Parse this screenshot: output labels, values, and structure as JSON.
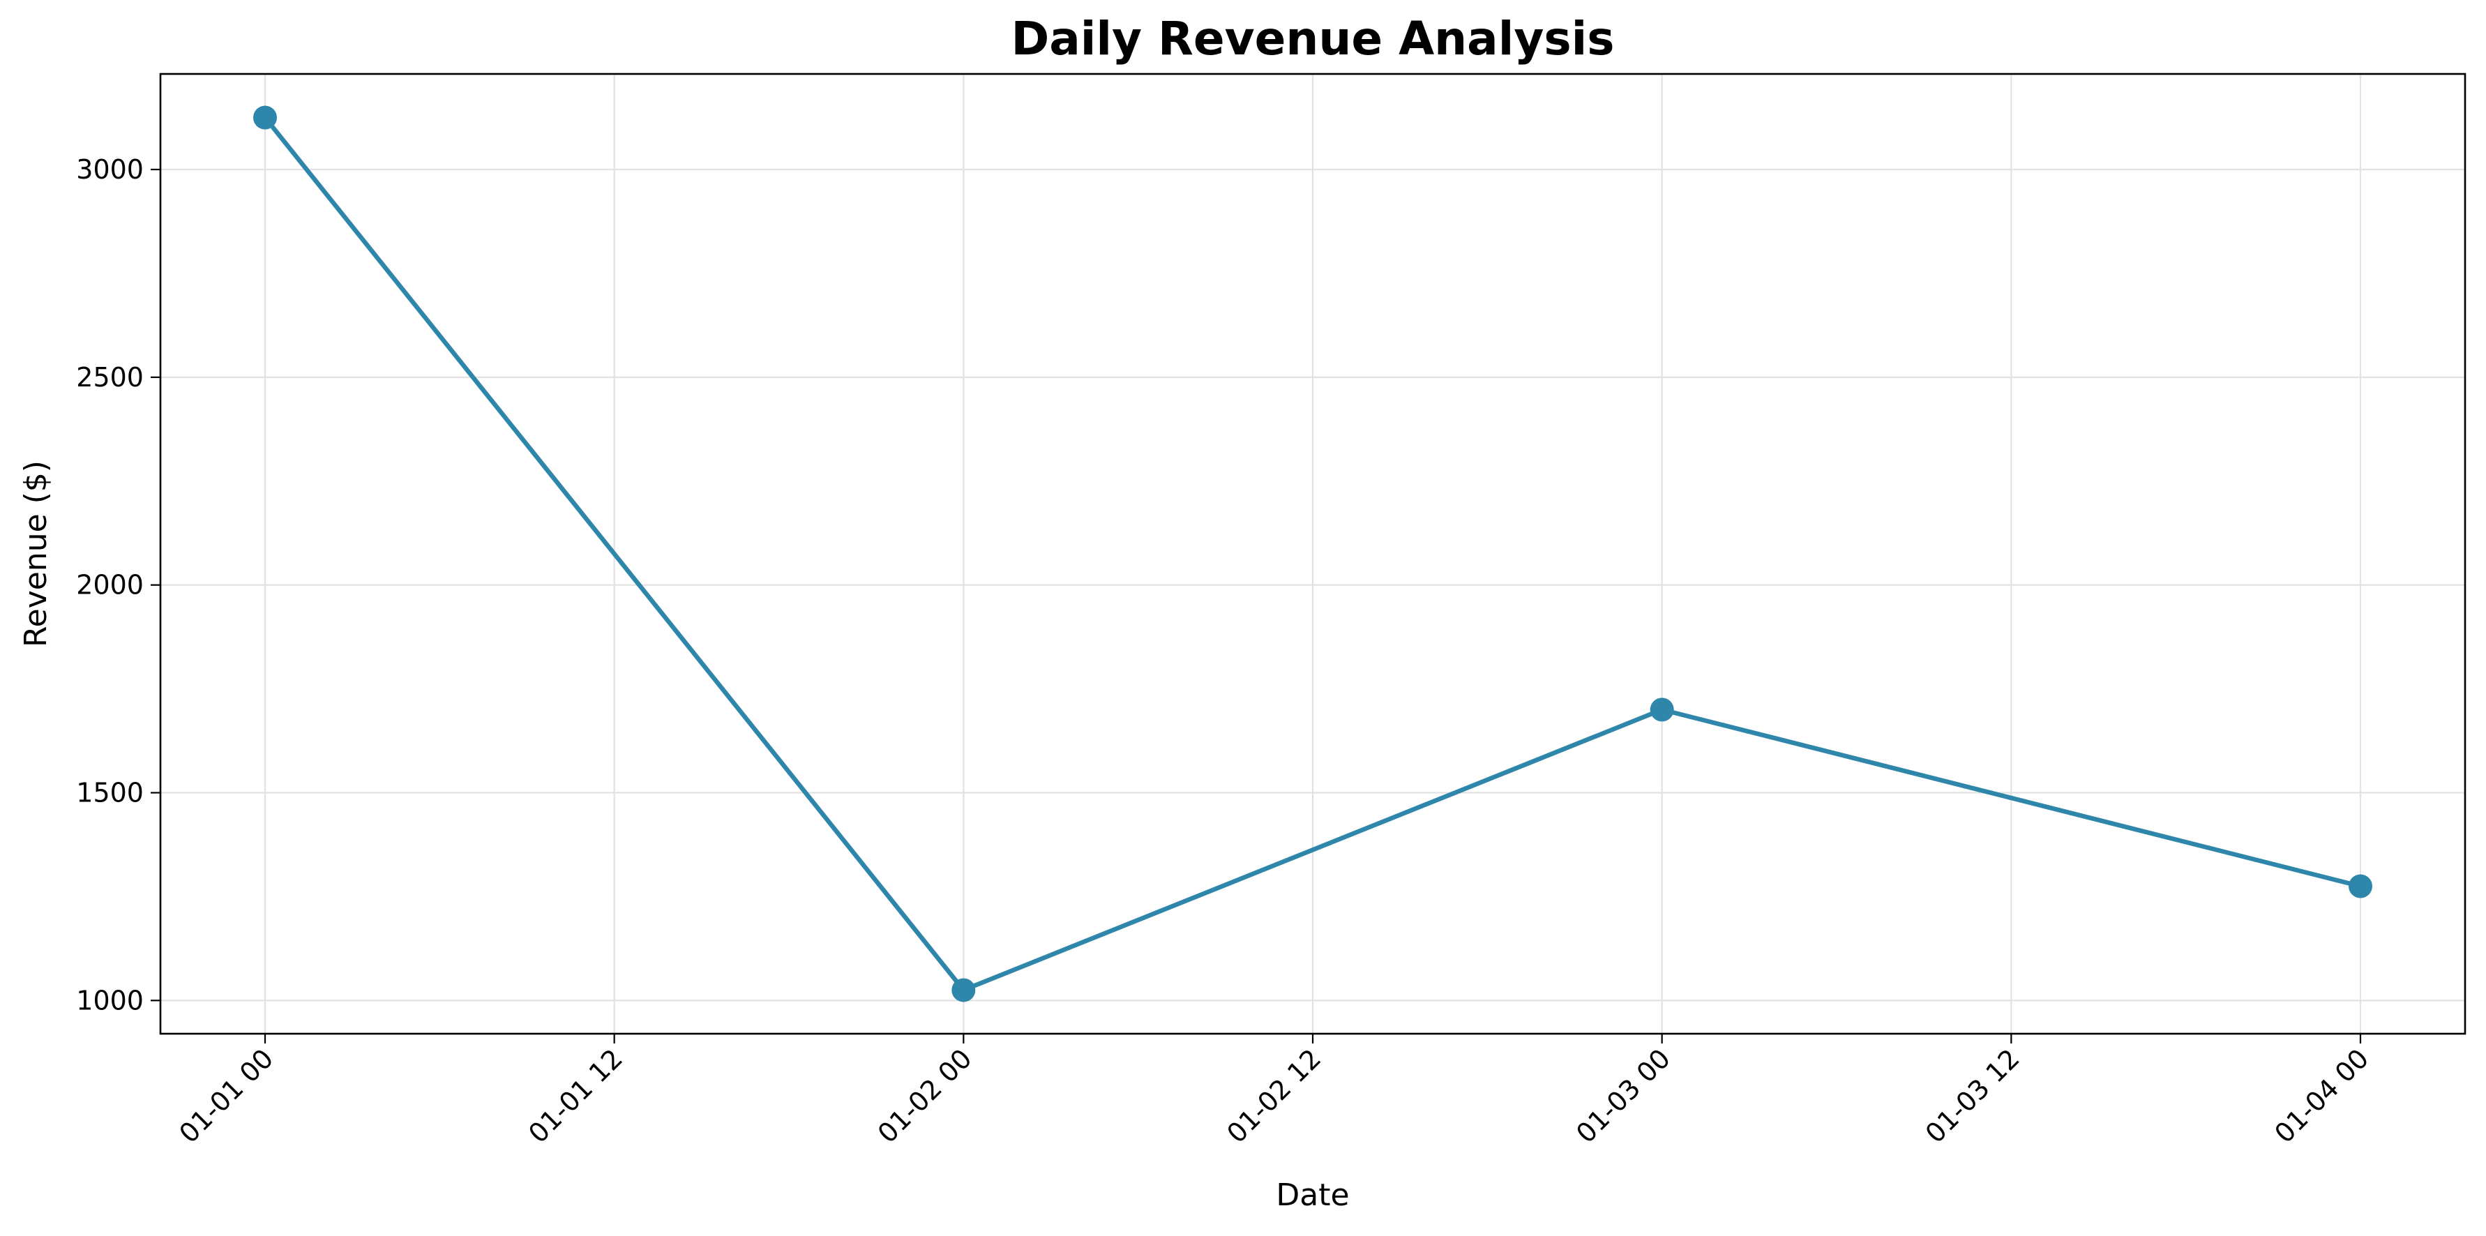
{
  "chart_data": {
    "type": "line",
    "title": "Daily Revenue Analysis",
    "xlabel": "Date",
    "ylabel": "Revenue ($)",
    "x": [
      "01-01 00",
      "01-02 00",
      "01-03 00",
      "01-04 00"
    ],
    "x_ticks": [
      "01-01 00",
      "01-01 12",
      "01-02 00",
      "01-02 12",
      "01-03 00",
      "01-03 12",
      "01-04 00"
    ],
    "y_ticks": [
      1000,
      1500,
      2000,
      2500,
      3000
    ],
    "ylim": [
      920,
      3230
    ],
    "grid": true,
    "series": [
      {
        "values": [
          3125,
          1025,
          1700,
          1275
        ],
        "color": "#2e86ab"
      }
    ]
  }
}
